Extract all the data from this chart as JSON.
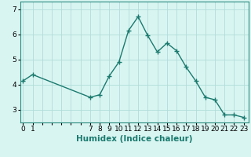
{
  "x": [
    0,
    1,
    7,
    8,
    9,
    10,
    11,
    12,
    13,
    14,
    15,
    16,
    17,
    18,
    19,
    20,
    21,
    22,
    23
  ],
  "y": [
    4.15,
    4.4,
    3.5,
    3.6,
    4.35,
    4.9,
    6.15,
    6.7,
    5.95,
    5.3,
    5.65,
    5.35,
    4.7,
    4.15,
    3.5,
    3.4,
    2.8,
    2.8,
    2.7
  ],
  "line_color": "#1a7a6e",
  "marker": "+",
  "markersize": 4,
  "linewidth": 1.0,
  "background_color": "#d9f5f2",
  "grid_color": "#b0ddd8",
  "xlabel": "Humidex (Indice chaleur)",
  "xlabel_fontsize": 7.5,
  "tick_fontsize": 6.5,
  "ylim": [
    2.5,
    7.3
  ],
  "yticks": [
    3,
    4,
    5,
    6,
    7
  ]
}
